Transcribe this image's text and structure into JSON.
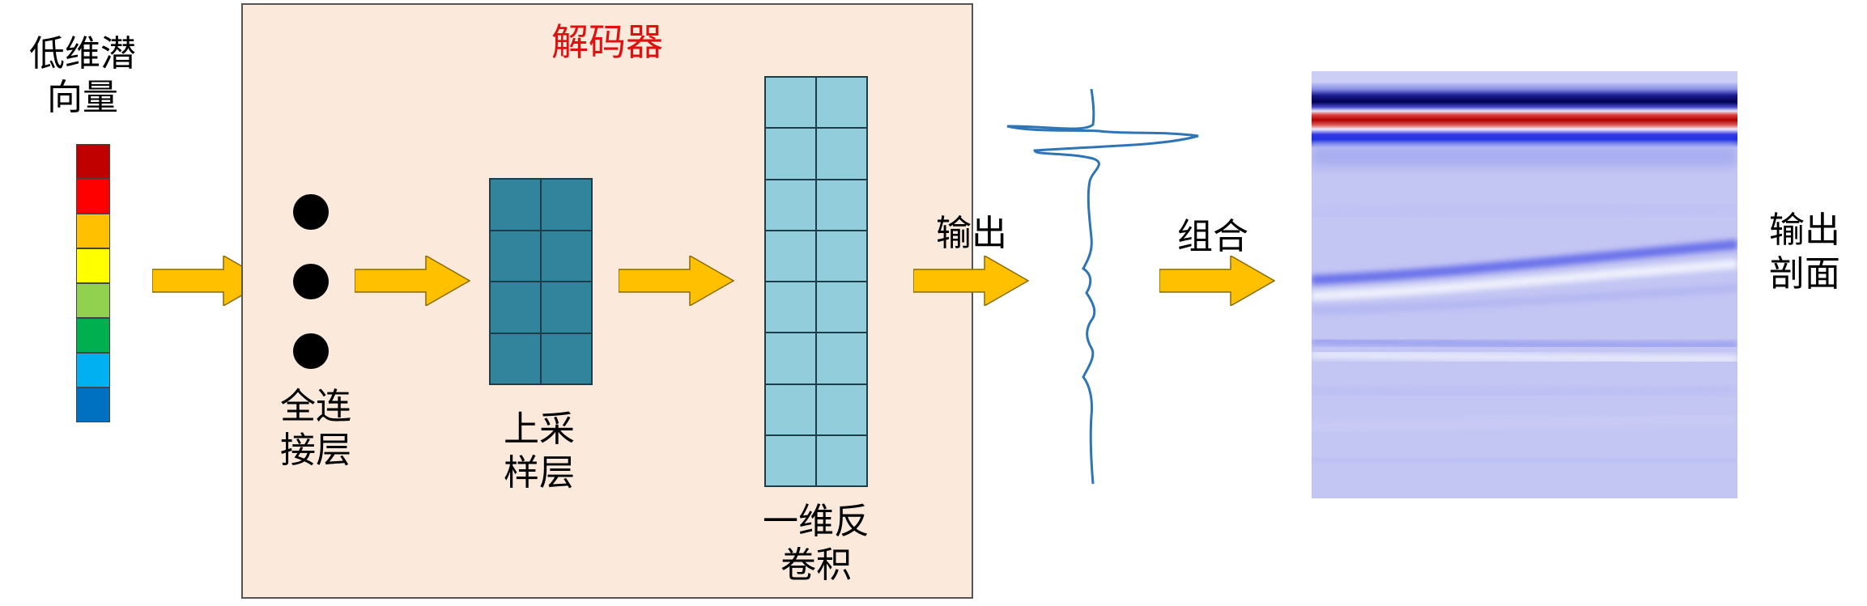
{
  "latent": {
    "label_line1": "低维潜",
    "label_line2": "向量",
    "colors": [
      "#c00000",
      "#ff0000",
      "#ffc000",
      "#ffff00",
      "#92d050",
      "#00b050",
      "#00b0f0",
      "#0070c0"
    ]
  },
  "decoder": {
    "title": "解码器",
    "background": "#fbe9dc",
    "fc_label_line1": "全连",
    "fc_label_line2": "接层",
    "upsample_label_line1": "上采",
    "upsample_label_line2": "样层",
    "deconv_label_line1": "一维反",
    "deconv_label_line2": "卷积",
    "upsample_color": "#31849b",
    "deconv_color": "#92cddc"
  },
  "output_label": "输出",
  "combine_label": "组合",
  "section_label_line1": "输出",
  "section_label_line2": "剖面",
  "arrow_color": "#ffc000",
  "wiggle_color": "#2e75b6",
  "section_colors": {
    "base": "#c3c5f3",
    "dark_blue": "#000060",
    "red": "#cc0000",
    "blue": "#2030e0"
  }
}
